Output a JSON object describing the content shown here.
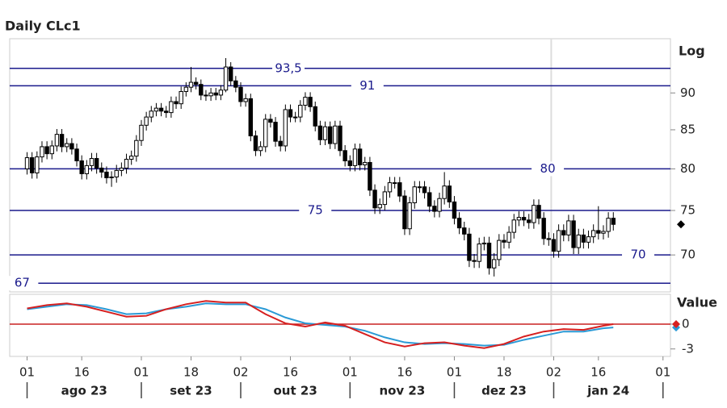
{
  "chart_data": {
    "type": "candlestick",
    "title": "Daily CLc1",
    "scale_label": "Log",
    "log_scale": true,
    "ylim": [
      66.1,
      97.9
    ],
    "yticks": [
      70,
      75,
      80,
      85,
      90
    ],
    "xlim": [
      -3.5,
      129.5
    ],
    "xticks": [
      {
        "value": 0,
        "label": "01"
      },
      {
        "value": 11,
        "label": "16"
      },
      {
        "value": 23,
        "label": "01"
      },
      {
        "value": 33,
        "label": "18"
      },
      {
        "value": 43,
        "label": "02"
      },
      {
        "value": 53,
        "label": "16"
      },
      {
        "value": 65,
        "label": "01"
      },
      {
        "value": 76,
        "label": "16"
      },
      {
        "value": 86,
        "label": "01"
      },
      {
        "value": 96,
        "label": "18"
      },
      {
        "value": 106,
        "label": "02"
      },
      {
        "value": 115,
        "label": "16"
      },
      {
        "value": 128,
        "label": "01"
      }
    ],
    "months": [
      "ago 23",
      "set 23",
      "out 23",
      "nov 23",
      "dez 23",
      "jan 24"
    ],
    "month_starts": [
      0,
      23,
      43,
      65,
      86,
      106,
      128
    ],
    "levels": [
      {
        "value": 93.5,
        "label": "93,5"
      },
      {
        "value": 91,
        "label": "91"
      },
      {
        "value": 80,
        "label": "80"
      },
      {
        "value": 75,
        "label": "75"
      },
      {
        "value": 70,
        "label": "70"
      },
      {
        "value": 67,
        "label": "67"
      }
    ],
    "level_color": "#1a1a8c",
    "up_color": "#ffffff",
    "down_color": "#000000",
    "open": [
      80.0,
      81.4,
      79.5,
      81.5,
      82.8,
      81.9,
      82.9,
      84.4,
      82.8,
      83.2,
      82.5,
      81.0,
      79.4,
      80.4,
      81.3,
      80.1,
      79.6,
      78.9,
      79.0,
      79.8,
      80.1,
      81.2,
      81.6,
      83.6,
      85.6,
      86.7,
      87.5,
      87.9,
      87.5,
      87.3,
      88.8,
      88.5,
      90.2,
      90.8,
      91.5,
      91.2,
      89.7,
      89.6,
      90.0,
      89.7,
      90.4,
      93.7,
      91.7,
      90.8,
      88.8,
      89.2,
      84.2,
      82.3,
      82.8,
      86.4,
      86.0,
      83.5,
      82.9,
      87.7,
      86.7,
      86.7,
      88.3,
      89.4,
      88.1,
      85.5,
      83.7,
      85.4,
      83.2,
      85.5,
      82.3,
      81.0,
      80.4,
      82.5,
      80.5,
      80.8,
      77.4,
      75.3,
      75.7,
      77.2,
      78.3,
      78.3,
      76.7,
      72.9,
      75.9,
      77.8,
      77.8,
      77.1,
      75.5,
      74.9,
      76.4,
      77.9,
      76.0,
      74.1,
      73.0,
      72.3,
      69.4,
      69.3,
      71.2,
      71.3,
      68.6,
      69.5,
      71.6,
      71.4,
      72.5,
      73.9,
      74.2,
      73.9,
      73.6,
      75.6,
      74.1,
      71.8,
      71.7,
      70.4,
      72.7,
      72.2,
      73.8,
      70.8,
      72.2,
      71.4,
      72.0,
      72.7,
      72.4,
      72.6,
      74.1
    ],
    "high": [
      82.1,
      82.1,
      82.2,
      83.5,
      83.5,
      83.6,
      85.1,
      85.1,
      83.9,
      83.9,
      83.2,
      81.7,
      81.1,
      82.0,
      82.0,
      80.8,
      80.3,
      79.7,
      80.5,
      80.8,
      81.9,
      82.3,
      84.3,
      86.3,
      87.4,
      88.2,
      88.6,
      88.6,
      88.2,
      89.5,
      89.5,
      90.9,
      91.5,
      93.7,
      92.2,
      91.9,
      90.4,
      90.7,
      90.7,
      91.1,
      95.0,
      94.4,
      92.4,
      91.5,
      89.9,
      89.9,
      84.9,
      83.5,
      87.1,
      87.1,
      86.7,
      84.2,
      88.4,
      88.4,
      87.4,
      89.0,
      90.1,
      90.1,
      88.8,
      86.2,
      86.1,
      86.1,
      86.2,
      86.2,
      83.0,
      81.7,
      83.2,
      83.2,
      81.5,
      81.5,
      78.1,
      76.4,
      77.9,
      79.0,
      79.0,
      79.0,
      77.4,
      76.6,
      78.5,
      78.5,
      78.5,
      77.8,
      76.2,
      77.1,
      79.6,
      78.6,
      76.7,
      74.8,
      73.7,
      73.0,
      70.1,
      71.9,
      72.0,
      72.0,
      70.2,
      72.3,
      72.3,
      73.2,
      74.6,
      74.9,
      74.9,
      74.6,
      76.3,
      76.3,
      74.8,
      72.5,
      72.4,
      73.4,
      73.4,
      74.5,
      74.5,
      72.9,
      72.9,
      72.7,
      73.4,
      75.5,
      73.3,
      74.8,
      74.8
    ],
    "low": [
      79.3,
      78.8,
      78.8,
      80.8,
      81.2,
      81.2,
      82.2,
      82.1,
      82.1,
      81.8,
      80.3,
      78.7,
      78.7,
      79.7,
      79.4,
      78.9,
      78.2,
      77.8,
      78.3,
      79.1,
      79.4,
      80.5,
      80.9,
      82.9,
      84.9,
      86.0,
      86.8,
      86.8,
      86.6,
      86.6,
      87.8,
      87.8,
      89.5,
      90.1,
      90.5,
      89.0,
      88.9,
      88.9,
      89.0,
      89.0,
      90.1,
      91.0,
      90.1,
      88.1,
      88.1,
      83.5,
      81.6,
      81.6,
      82.1,
      85.3,
      82.8,
      82.2,
      82.2,
      86.0,
      86.0,
      86.0,
      87.6,
      87.4,
      84.8,
      83.0,
      83.0,
      82.5,
      82.5,
      81.6,
      80.3,
      79.7,
      79.7,
      79.8,
      79.8,
      76.7,
      74.6,
      74.6,
      75.0,
      76.5,
      77.6,
      76.0,
      72.2,
      72.2,
      75.2,
      77.1,
      76.4,
      74.8,
      74.2,
      74.2,
      75.7,
      75.3,
      73.4,
      72.3,
      71.6,
      68.7,
      68.6,
      68.6,
      70.5,
      67.9,
      67.7,
      68.8,
      70.7,
      70.7,
      71.8,
      73.2,
      73.2,
      72.9,
      72.9,
      73.4,
      71.1,
      71.0,
      69.7,
      69.7,
      71.5,
      71.5,
      70.1,
      70.1,
      70.7,
      70.7,
      71.3,
      71.7,
      71.7,
      71.9,
      72.7
    ],
    "close": [
      81.4,
      79.5,
      81.5,
      82.8,
      81.9,
      82.9,
      84.4,
      82.8,
      83.2,
      82.5,
      81.0,
      79.4,
      80.4,
      81.3,
      80.1,
      79.6,
      78.9,
      79.0,
      79.8,
      80.1,
      81.2,
      81.6,
      83.6,
      85.6,
      86.7,
      87.5,
      87.9,
      87.5,
      87.3,
      88.8,
      88.5,
      90.2,
      90.8,
      91.5,
      91.2,
      89.7,
      89.6,
      90.0,
      89.7,
      90.4,
      93.7,
      91.7,
      90.8,
      88.8,
      89.2,
      84.2,
      82.3,
      82.8,
      86.4,
      86.0,
      83.5,
      82.9,
      87.7,
      86.7,
      86.7,
      88.3,
      89.4,
      88.1,
      85.5,
      83.7,
      85.4,
      83.2,
      85.5,
      82.3,
      81.0,
      80.4,
      82.5,
      80.5,
      80.8,
      77.4,
      75.3,
      75.7,
      77.2,
      78.3,
      78.3,
      76.7,
      72.9,
      75.9,
      77.8,
      77.8,
      77.1,
      75.5,
      74.9,
      76.4,
      77.9,
      76.0,
      74.1,
      73.0,
      72.3,
      69.4,
      69.3,
      71.2,
      71.3,
      68.6,
      69.5,
      71.6,
      71.4,
      72.5,
      73.9,
      74.2,
      73.9,
      73.6,
      75.6,
      74.1,
      71.8,
      71.7,
      70.4,
      72.7,
      72.2,
      73.8,
      70.8,
      72.2,
      71.4,
      72.0,
      72.7,
      72.4,
      72.6,
      74.1,
      73.4
    ],
    "indicator": {
      "type": "line",
      "axis_label": "Value",
      "ylim": [
        -3.9,
        3.6
      ],
      "yticks": [
        0,
        -3
      ],
      "zero_line_color": "#c82020",
      "x": [
        0,
        4,
        8,
        12,
        16,
        20,
        24,
        28,
        32,
        36,
        40,
        44,
        48,
        52,
        56,
        60,
        64,
        68,
        72,
        76,
        80,
        84,
        88,
        92,
        96,
        100,
        104,
        108,
        112,
        116,
        118
      ],
      "series": [
        {
          "name": "signal",
          "color": "#2a9ad6",
          "values": [
            1.8,
            2.1,
            2.4,
            2.3,
            1.8,
            1.2,
            1.3,
            1.8,
            2.1,
            2.5,
            2.4,
            2.4,
            1.8,
            0.8,
            0.1,
            -0.1,
            -0.3,
            -0.8,
            -1.6,
            -2.2,
            -2.4,
            -2.3,
            -2.4,
            -2.6,
            -2.5,
            -1.9,
            -1.4,
            -0.9,
            -0.9,
            -0.5,
            -0.4
          ]
        },
        {
          "name": "line",
          "color": "#d62020",
          "values": [
            1.9,
            2.3,
            2.5,
            2.1,
            1.5,
            0.9,
            1.0,
            1.8,
            2.4,
            2.8,
            2.6,
            2.6,
            1.2,
            0.1,
            -0.3,
            0.2,
            -0.2,
            -1.2,
            -2.2,
            -2.7,
            -2.3,
            -2.2,
            -2.6,
            -2.9,
            -2.4,
            -1.5,
            -0.9,
            -0.6,
            -0.7,
            -0.2,
            0.0
          ]
        }
      ]
    }
  }
}
